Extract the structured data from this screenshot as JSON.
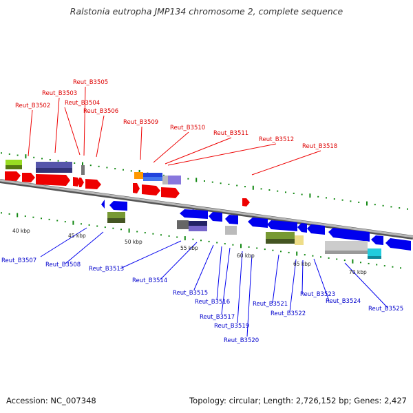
{
  "title": "Ralstonia eutropha JMP134 chromosome 2, complete sequence",
  "footer": {
    "accession": "Accession: NC_007348",
    "summary": "Topology: circular; Length: 2,726,152 bp; Genes: 2,427"
  },
  "colors": {
    "forward": "#ee0000",
    "reverse": "#0000ee",
    "backbone": "#888888",
    "tick": "#118811"
  },
  "kbp_labels": [
    "40 kbp",
    "45 kbp",
    "50 kbp",
    "55 kbp",
    "60 kbp",
    "65 kbp",
    "70 kbp"
  ],
  "forward_genes": [
    "Reut_B3502",
    "Reut_B3503",
    "Reut_B3504",
    "Reut_B3505",
    "Reut_B3506",
    "Reut_B3509",
    "Reut_B3510",
    "Reut_B3511",
    "Reut_B3512",
    "Reut_B3518"
  ],
  "reverse_genes": [
    "Reut_B3507",
    "Reut_B3508",
    "Reut_B3513",
    "Reut_B3514",
    "Reut_B3515",
    "Reut_B3516",
    "Reut_B3517",
    "Reut_B3519",
    "Reut_B3520",
    "Reut_B3521",
    "Reut_B3522",
    "Reut_B3523",
    "Reut_B3524",
    "Reut_B3525"
  ]
}
